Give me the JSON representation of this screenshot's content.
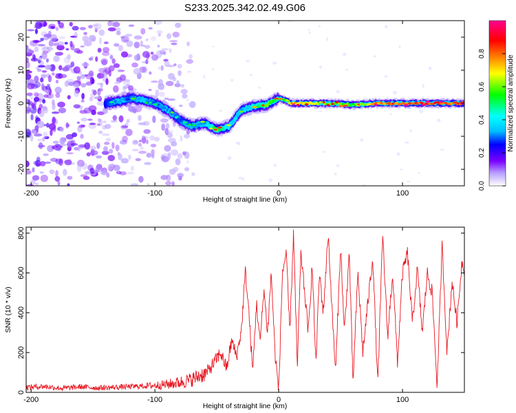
{
  "title": "S233.2025.342.02.49.G06",
  "chart_data": [
    {
      "type": "heatmap",
      "name": "spectrogram",
      "xlabel": "Height of straight line (km)",
      "ylabel": "Frequency (Hz)",
      "xlim": [
        -204,
        150
      ],
      "ylim": [
        -25,
        25
      ],
      "xticks": [
        -200,
        -100,
        0,
        100
      ],
      "xtick_labels": [
        "-200",
        "-100",
        "0",
        "100"
      ],
      "yticks": [
        -20,
        -10,
        0,
        10,
        20
      ],
      "ytick_labels": [
        "-20",
        "-10",
        "0",
        "10",
        "20"
      ],
      "colorbar": {
        "label": "Normalized spectral amplitude",
        "range": [
          0,
          1
        ],
        "ticks": [
          0.0,
          0.2,
          0.4,
          0.6,
          0.8
        ],
        "tick_labels": [
          "0.0",
          "0.2",
          "0.4",
          "0.6",
          "0.8"
        ],
        "colors": [
          "#ffffff",
          "#7b00ff",
          "#0000ff",
          "#00bfff",
          "#00ffff",
          "#00ff00",
          "#ffff00",
          "#ff8000",
          "#ff0000",
          "#ff00aa"
        ]
      },
      "ridge": {
        "x": [
          -140,
          -130,
          -120,
          -110,
          -100,
          -90,
          -80,
          -70,
          -60,
          -50,
          -40,
          -30,
          -20,
          -10,
          0,
          5,
          10,
          20,
          40,
          60,
          80,
          100,
          120,
          150
        ],
        "freq": [
          0,
          0.5,
          1.5,
          1,
          0,
          -2,
          -5,
          -7,
          -6,
          -8,
          -7,
          -2,
          -1,
          -0.5,
          1.5,
          1,
          0,
          0,
          0,
          -0.5,
          0,
          0,
          0,
          0
        ],
        "amplitude": [
          0.25,
          0.35,
          0.3,
          0.35,
          0.3,
          0.35,
          0.3,
          0.35,
          0.35,
          0.6,
          0.4,
          0.35,
          0.45,
          0.6,
          0.5,
          0.55,
          0.8,
          0.7,
          0.65,
          0.6,
          0.8,
          0.88,
          0.9,
          0.85
        ]
      }
    },
    {
      "type": "line",
      "name": "snr",
      "xlabel": "Height of straight line (km)",
      "ylabel": "SNR (10 * v/v)",
      "xlim": [
        -204,
        150
      ],
      "ylim": [
        0,
        830
      ],
      "xticks": [
        -200,
        -100,
        0,
        100
      ],
      "xtick_labels": [
        "-200",
        "-100",
        "0",
        "100"
      ],
      "yticks": [
        0,
        200,
        400,
        600,
        800
      ],
      "ytick_labels": [
        "0",
        "200",
        "400",
        "600",
        "800"
      ],
      "color": "#e8141e",
      "series": [
        {
          "name": "SNR",
          "x": [
            -204,
            -190,
            -175,
            -160,
            -145,
            -130,
            -115,
            -100,
            -90,
            -80,
            -72,
            -65,
            -58,
            -52,
            -47,
            -42,
            -38,
            -34,
            -30,
            -27,
            -24,
            -21,
            -18,
            -15,
            -12,
            -9,
            -6,
            -3,
            0,
            3,
            6,
            9,
            12,
            15,
            18,
            21,
            24,
            27,
            30,
            33,
            36,
            40,
            43,
            46,
            50,
            53,
            57,
            60,
            64,
            68,
            72,
            76,
            80,
            84,
            88,
            92,
            96,
            100,
            104,
            108,
            112,
            116,
            120,
            124,
            128,
            132,
            136,
            140,
            144,
            148,
            150
          ],
          "y": [
            25,
            30,
            20,
            28,
            22,
            26,
            30,
            35,
            40,
            50,
            60,
            80,
            100,
            150,
            200,
            120,
            260,
            180,
            320,
            610,
            400,
            100,
            450,
            250,
            520,
            300,
            600,
            200,
            10,
            600,
            700,
            300,
            810,
            120,
            700,
            500,
            300,
            640,
            150,
            600,
            400,
            800,
            420,
            100,
            740,
            300,
            700,
            50,
            600,
            200,
            450,
            680,
            40,
            790,
            280,
            600,
            150,
            600,
            700,
            350,
            620,
            300,
            600,
            500,
            30,
            740,
            200,
            560,
            350,
            660,
            620
          ]
        }
      ]
    }
  ]
}
